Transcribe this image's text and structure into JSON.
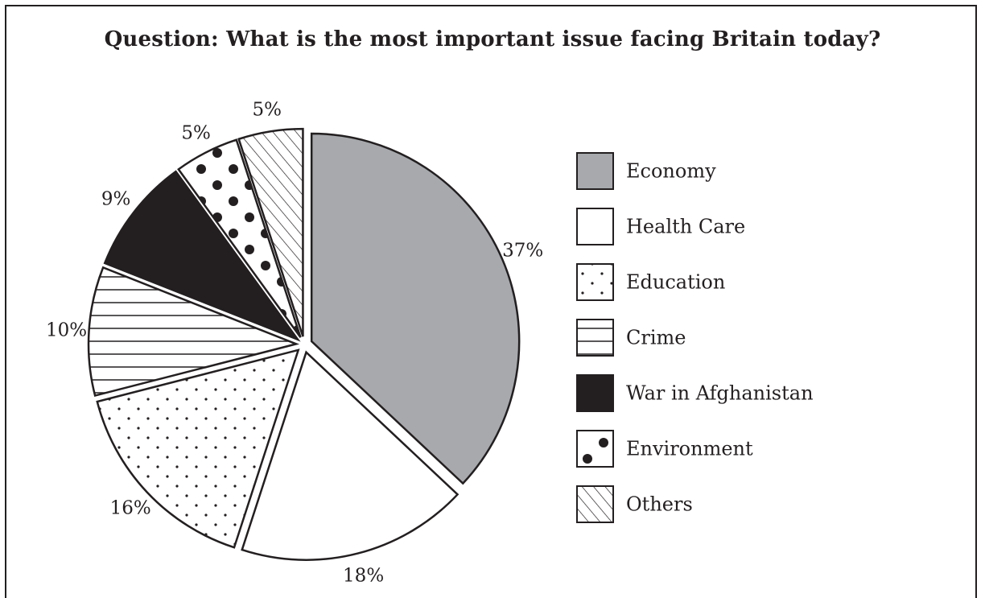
{
  "chart_data": {
    "type": "pie",
    "title": "Question:  What is the most important issue facing Britain today?",
    "categories": [
      "Economy",
      "Health Care",
      "Education",
      "Crime",
      "War in Afghanistan",
      "Environment",
      "Others"
    ],
    "values": [
      37,
      18,
      16,
      10,
      9,
      5,
      5
    ],
    "labels": [
      "37%",
      "18%",
      "16%",
      "10%",
      "9%",
      "5%",
      "5%"
    ],
    "legend_position": "right",
    "fills": [
      "grey",
      "white",
      "sparse-dots",
      "horizontal-lines",
      "black",
      "large-dots",
      "diagonal-hatch"
    ],
    "colors": {
      "economy": "#a7a9ac",
      "ink": "#231f20",
      "background": "#ffffff"
    }
  }
}
